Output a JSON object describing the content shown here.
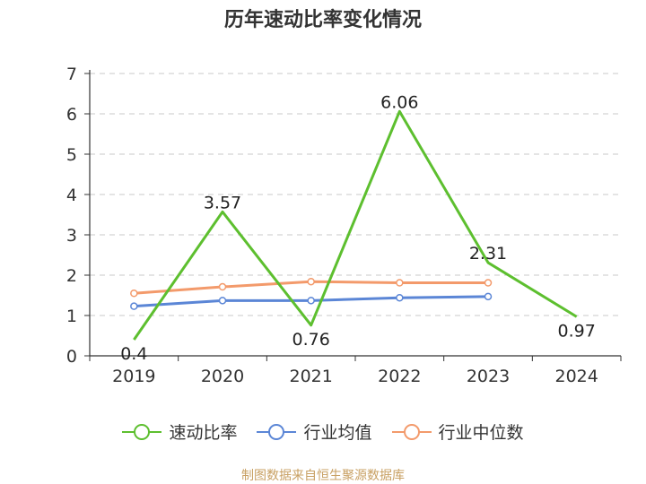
{
  "chart_data": {
    "type": "line",
    "title": "历年速动比率变化情况",
    "categories": [
      "2019",
      "2020",
      "2021",
      "2022",
      "2023",
      "2024"
    ],
    "ylim": [
      0,
      7
    ],
    "yticks": [
      "0",
      "1",
      "2",
      "3",
      "4",
      "5",
      "6",
      "7"
    ],
    "grid": true,
    "legend_position": "bottom",
    "series": [
      {
        "name": "速动比率",
        "color": "#5dbf2f",
        "values": [
          0.4,
          3.57,
          0.76,
          6.06,
          2.31,
          0.97
        ],
        "labels": [
          "0.4",
          "3.57",
          "0.76",
          "6.06",
          "2.31",
          "0.97"
        ]
      },
      {
        "name": "行业均值",
        "color": "#5b86d6",
        "values": [
          1.23,
          1.37,
          1.37,
          1.44,
          1.47,
          null
        ]
      },
      {
        "name": "行业中位数",
        "color": "#f39a6b",
        "values": [
          1.55,
          1.71,
          1.84,
          1.81,
          1.81,
          null
        ]
      }
    ]
  },
  "footer": "制图数据来自恒生聚源数据库"
}
